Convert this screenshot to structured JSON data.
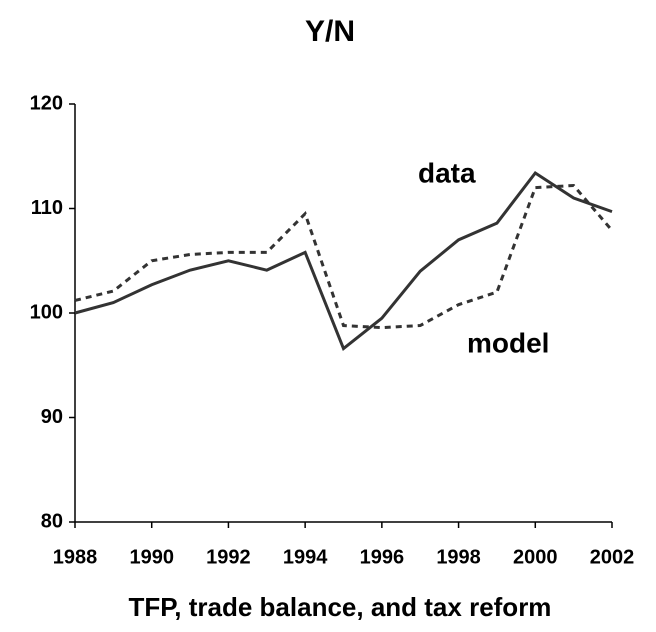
{
  "chart_data": {
    "type": "line",
    "title": "Y/N",
    "x_label": "TFP, trade balance, and tax reform",
    "x": [
      1988,
      1989,
      1990,
      1991,
      1992,
      1993,
      1994,
      1995,
      1996,
      1997,
      1998,
      1999,
      2000,
      2001,
      2002
    ],
    "series": [
      {
        "name": "data",
        "color": "#333333",
        "style": "solid",
        "values": [
          100,
          101.0,
          102.7,
          104.1,
          105.0,
          104.1,
          105.8,
          96.6,
          99.5,
          104.0,
          107.0,
          108.6,
          113.4,
          111.0,
          109.7
        ]
      },
      {
        "name": "model",
        "color": "#333333",
        "style": "dashed",
        "values": [
          101.2,
          102.1,
          105.0,
          105.6,
          105.8,
          105.8,
          109.5,
          98.8,
          98.6,
          98.8,
          100.8,
          102.0,
          112.0,
          112.2,
          107.9
        ]
      }
    ],
    "xlim": [
      1988,
      2002
    ],
    "xticks": [
      1988,
      1990,
      1992,
      1994,
      1996,
      1998,
      2000,
      2002
    ],
    "ylim": [
      80,
      120
    ],
    "yticks": [
      80,
      90,
      100,
      110,
      120
    ]
  }
}
